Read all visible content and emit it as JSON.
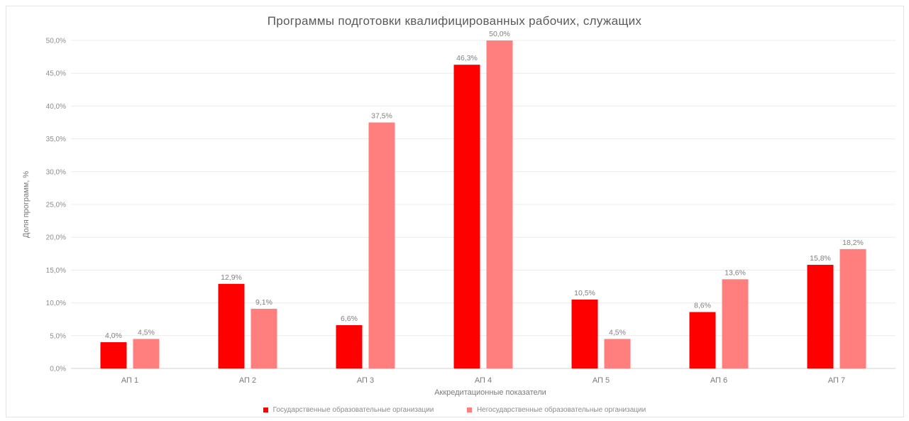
{
  "chart_data": {
    "type": "bar",
    "title": "Программы подготовки квалифицированных рабочих, служащих",
    "xlabel": "Аккредитационные показатели",
    "ylabel": "Доля программ, %",
    "ylim": [
      0,
      50
    ],
    "yticks": [
      "0,0%",
      "5,0%",
      "10,0%",
      "15,0%",
      "20,0%",
      "25,0%",
      "30,0%",
      "35,0%",
      "40,0%",
      "45,0%",
      "50,0%"
    ],
    "categories": [
      "АП 1",
      "АП 2",
      "АП 3",
      "АП 4",
      "АП 5",
      "АП 6",
      "АП 7"
    ],
    "series": [
      {
        "name": "Государственные образовательные организации",
        "color": "#ff0000",
        "values": [
          4.0,
          12.9,
          6.6,
          46.3,
          10.5,
          8.6,
          15.8
        ],
        "labels": [
          "4,0%",
          "12,9%",
          "6,6%",
          "46,3%",
          "10,5%",
          "8,6%",
          "15,8%"
        ]
      },
      {
        "name": "Негосударственные образовательные организации",
        "color": "#ff7f7f",
        "values": [
          4.5,
          9.1,
          37.5,
          50.0,
          4.5,
          13.6,
          18.2
        ],
        "labels": [
          "4,5%",
          "9,1%",
          "37,5%",
          "50,0%",
          "4,5%",
          "13,6%",
          "18,2%"
        ]
      }
    ],
    "grid": true,
    "legend_position": "bottom"
  }
}
